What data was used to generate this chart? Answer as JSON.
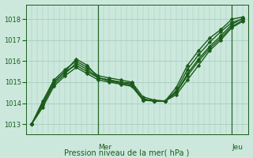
{
  "xlabel": "Pression niveau de la mer( hPa )",
  "ylim": [
    1012.5,
    1018.7
  ],
  "yticks": [
    1013,
    1014,
    1015,
    1016,
    1017,
    1018
  ],
  "bg_color": "#cce8dd",
  "grid_color": "#a0c8b8",
  "line_color": "#1a5c1a",
  "vline_color": "#2a6a2a",
  "vline_positions": [
    6,
    18
  ],
  "vline_labels": [
    "Mer",
    "Jeu"
  ],
  "series": [
    [
      1013.0,
      1014.0,
      1015.0,
      1015.5,
      1016.1,
      1015.8,
      1015.2,
      1015.1,
      1015.0,
      1014.95,
      1014.15,
      1014.1,
      1014.1,
      1014.75,
      1015.8,
      1016.5,
      1017.1,
      1017.5,
      1018.0,
      1018.1
    ],
    [
      1013.0,
      1014.0,
      1015.0,
      1015.5,
      1015.8,
      1015.5,
      1015.2,
      1015.1,
      1015.0,
      1014.9,
      1014.2,
      1014.1,
      1014.1,
      1014.5,
      1015.4,
      1016.1,
      1016.7,
      1017.2,
      1017.75,
      1018.05
    ],
    [
      1013.0,
      1013.8,
      1014.8,
      1015.3,
      1015.7,
      1015.4,
      1015.1,
      1015.0,
      1014.9,
      1014.8,
      1014.15,
      1014.1,
      1014.1,
      1014.4,
      1015.1,
      1015.8,
      1016.5,
      1017.0,
      1017.6,
      1017.9
    ],
    [
      1013.0,
      1014.1,
      1015.1,
      1015.6,
      1016.0,
      1015.7,
      1015.3,
      1015.2,
      1015.1,
      1015.0,
      1014.3,
      1014.15,
      1014.1,
      1014.6,
      1015.6,
      1016.3,
      1016.9,
      1017.4,
      1017.85,
      1018.0
    ],
    [
      1013.0,
      1013.9,
      1014.9,
      1015.4,
      1015.9,
      1015.6,
      1015.2,
      1015.05,
      1014.95,
      1014.85,
      1014.2,
      1014.1,
      1014.1,
      1014.5,
      1015.3,
      1016.0,
      1016.6,
      1017.1,
      1017.65,
      1017.95
    ]
  ],
  "n_points": 20,
  "marker": "D",
  "markersize": 2.5,
  "linewidth": 1.0,
  "figsize": [
    3.2,
    2.0
  ],
  "dpi": 100
}
